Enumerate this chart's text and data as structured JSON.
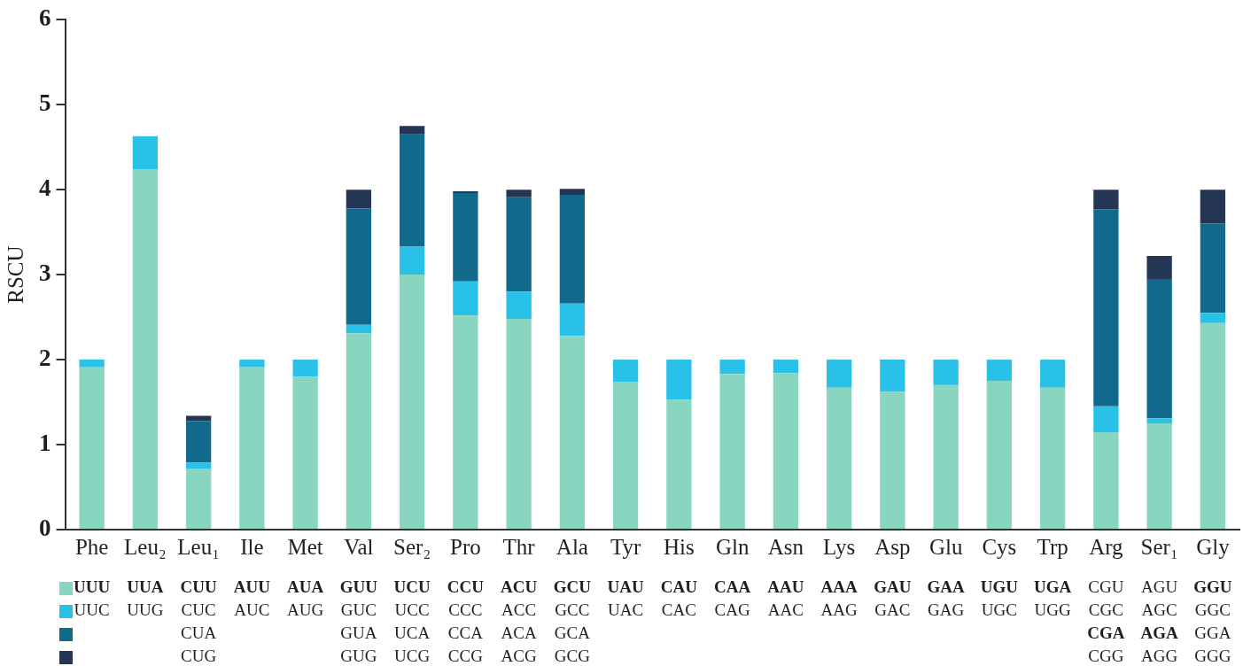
{
  "chart_data": {
    "type": "bar",
    "stacked": true,
    "ylabel": "RSCU",
    "ylim": [
      0,
      6
    ],
    "yticks": [
      0,
      1,
      2,
      3,
      4,
      5,
      6
    ],
    "grid": false,
    "legend": false,
    "categories": [
      "Phe",
      "Leu₂",
      "Leu₁",
      "Ile",
      "Met",
      "Val",
      "Ser₂",
      "Pro",
      "Thr",
      "Ala",
      "Tyr",
      "His",
      "Gln",
      "Asn",
      "Lys",
      "Asp",
      "Glu",
      "Cys",
      "Trp",
      "Arg",
      "Ser₁",
      "Gly"
    ],
    "series": [
      {
        "color": "#88d6c0",
        "values": [
          1.91,
          4.24,
          0.72,
          1.91,
          1.8,
          2.31,
          3.0,
          2.52,
          2.48,
          2.28,
          1.74,
          1.53,
          1.83,
          1.84,
          1.67,
          1.62,
          1.7,
          1.75,
          1.67,
          1.14,
          1.25,
          2.43
        ]
      },
      {
        "color": "#29c1e8",
        "values": [
          0.09,
          0.39,
          0.07,
          0.09,
          0.2,
          0.1,
          0.33,
          0.4,
          0.32,
          0.38,
          0.26,
          0.47,
          0.17,
          0.16,
          0.33,
          0.38,
          0.3,
          0.25,
          0.33,
          0.31,
          0.06,
          0.12
        ]
      },
      {
        "color": "#116a8c",
        "values": [
          null,
          null,
          0.49,
          null,
          null,
          1.37,
          1.32,
          1.04,
          1.11,
          1.28,
          null,
          null,
          null,
          null,
          null,
          null,
          null,
          null,
          null,
          2.32,
          1.63,
          1.05
        ]
      },
      {
        "color": "#253654",
        "values": [
          null,
          null,
          0.06,
          null,
          null,
          0.22,
          0.1,
          0.02,
          0.09,
          0.07,
          null,
          null,
          null,
          null,
          null,
          null,
          null,
          null,
          null,
          0.23,
          0.28,
          0.4
        ]
      }
    ],
    "annotations": [
      "UUU",
      "UUC",
      "UUA",
      "UUG",
      "CUU",
      "CUC",
      "CUA",
      "CUG",
      "AUU",
      "AUC",
      "AUA",
      "AUG",
      "GUU",
      "GUC",
      "GUA",
      "GUG",
      "UCU",
      "UCC",
      "UCA",
      "UCG",
      "CCU",
      "CCC",
      "CCA",
      "CCG",
      "ACU",
      "ACC",
      "ACA",
      "ACG",
      "GCU",
      "GCC",
      "GCA",
      "GCG",
      "UAU",
      "UAC",
      "CAU",
      "CAC",
      "CAA",
      "CAG",
      "AAU",
      "AAC",
      "AAA",
      "AAG",
      "GAU",
      "GAC",
      "GAA",
      "GAG",
      "UGU",
      "UGC",
      "UGA",
      "UGG",
      "CGU",
      "CGC",
      "CGA",
      "CGG",
      "AGU",
      "AGC",
      "AGA",
      "AGG",
      "GGU",
      "GGC",
      "GGA",
      "GGG"
    ]
  }
}
